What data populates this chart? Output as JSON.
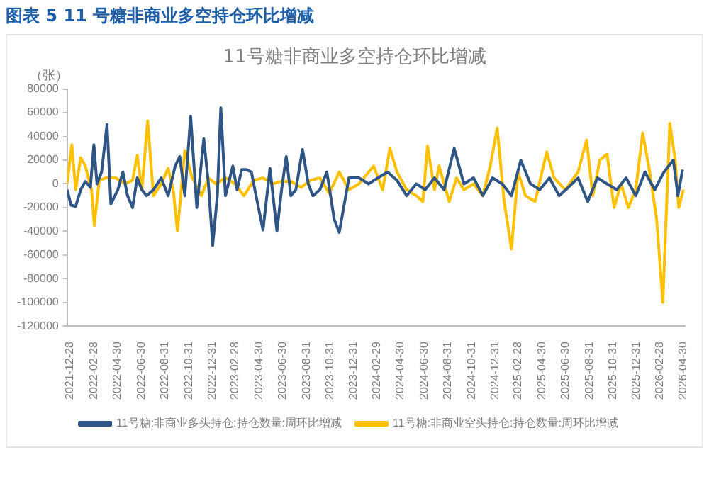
{
  "chart_data": {
    "type": "line",
    "title": "图表 5 11 号糖非商业多空持仓环比增减",
    "subtitle": "11号糖非商业多空持仓环比增减",
    "ylabel": "（张）",
    "xlim": [
      "2021-12-28",
      "2026-05-12"
    ],
    "xticks": [
      "2021-12-28",
      "2022-02-28",
      "2022-04-30",
      "2022-06-30",
      "2022-08-31",
      "2022-10-31",
      "2022-12-31",
      "2023-02-28",
      "2023-04-30",
      "2023-06-30",
      "2023-08-31",
      "2023-10-31",
      "2023-12-31",
      "2024-02-29",
      "2024-04-30",
      "2024-06-30",
      "2024-08-31",
      "2024-10-31",
      "2024-12-31",
      "2025-02-28",
      "2025-04-30",
      "2025-06-30",
      "2025-08-31",
      "2025-10-31",
      "2025-12-31",
      "2026-02-28",
      "2026-04-30"
    ],
    "ylim": [
      -120000,
      80000
    ],
    "yticks": [
      -120000,
      -100000,
      -80000,
      -60000,
      -40000,
      -20000,
      0,
      20000,
      40000,
      60000,
      80000
    ],
    "grid": false,
    "legend": "bottom",
    "marker": "none",
    "line_style": "solid",
    "series": [
      {
        "name": "11号糖:非商业多头持仓:持仓数量:周环比增减",
        "color": "#2e5585",
        "x": [
          "2021-12-28",
          "2022-01-07",
          "2022-01-19",
          "2022-02-01",
          "2022-02-13",
          "2022-02-26",
          "2022-03-07",
          "2022-03-15",
          "2022-03-27",
          "2022-04-10",
          "2022-04-20",
          "2022-05-08",
          "2022-05-21",
          "2022-06-02",
          "2022-06-15",
          "2022-06-27",
          "2022-07-09",
          "2022-07-21",
          "2022-08-08",
          "2022-08-28",
          "2022-09-15",
          "2022-10-03",
          "2022-10-15",
          "2022-10-28",
          "2022-11-12",
          "2022-11-28",
          "2022-12-16",
          "2022-12-28",
          "2023-01-08",
          "2023-01-20",
          "2023-01-29",
          "2023-02-10",
          "2023-03-01",
          "2023-03-12",
          "2023-03-24",
          "2023-04-05",
          "2023-04-18",
          "2023-04-30",
          "2023-05-18",
          "2023-06-05",
          "2023-06-23",
          "2023-07-05",
          "2023-07-17",
          "2023-07-29",
          "2023-08-11",
          "2023-08-28",
          "2023-09-12",
          "2023-09-24",
          "2023-10-12",
          "2023-10-30",
          "2023-11-18",
          "2023-12-01",
          "2023-12-26",
          "2024-01-21",
          "2024-02-15",
          "2024-03-10",
          "2024-04-04",
          "2024-04-28",
          "2024-05-23",
          "2024-06-17",
          "2024-07-10",
          "2024-08-03",
          "2024-08-28",
          "2024-09-23",
          "2024-10-18",
          "2024-11-12",
          "2024-12-06",
          "2024-12-31",
          "2025-01-25",
          "2025-02-18",
          "2025-03-14",
          "2025-04-08",
          "2025-05-02",
          "2025-05-27",
          "2025-06-21",
          "2025-07-15",
          "2025-08-09",
          "2025-09-03",
          "2025-09-28",
          "2025-10-23",
          "2025-11-17",
          "2025-12-11",
          "2026-01-05",
          "2026-01-29",
          "2026-02-23",
          "2026-03-19",
          "2026-04-12",
          "2026-04-24",
          "2026-05-06"
        ],
        "values": [
          -5000,
          -18000,
          -19000,
          -5000,
          2000,
          -3000,
          33000,
          0,
          10000,
          50000,
          -17000,
          -5000,
          10000,
          -10000,
          -20000,
          5000,
          -5000,
          -10000,
          -5000,
          5000,
          -10000,
          15000,
          23000,
          -10000,
          57000,
          -20000,
          38000,
          0,
          -52000,
          -10000,
          64000,
          -10000,
          15000,
          -5000,
          12000,
          12000,
          10000,
          -10000,
          -39000,
          13000,
          -40000,
          -5000,
          23000,
          -10000,
          -5000,
          29000,
          0,
          -10000,
          -5000,
          10000,
          -30000,
          -41000,
          5000,
          5000,
          0,
          5000,
          10000,
          3000,
          -10000,
          0,
          -5000,
          5000,
          -5000,
          30000,
          0,
          5000,
          -10000,
          5000,
          0,
          -10000,
          20000,
          0,
          -5000,
          5000,
          -10000,
          -3000,
          5000,
          -15000,
          5000,
          0,
          -5000,
          5000,
          -10000,
          10000,
          -5000,
          10000,
          20000,
          -10000,
          12000
        ]
      },
      {
        "name": "11号糖:非商业空头持仓:持仓数量:周环比增减",
        "color": "#ffc000",
        "x": [
          "2021-12-28",
          "2022-01-09",
          "2022-01-19",
          "2022-02-01",
          "2022-02-13",
          "2022-03-01",
          "2022-03-08",
          "2022-03-21",
          "2022-04-07",
          "2022-05-02",
          "2022-05-27",
          "2022-06-15",
          "2022-06-27",
          "2022-07-09",
          "2022-07-24",
          "2022-08-08",
          "2022-08-28",
          "2022-09-15",
          "2022-09-28",
          "2022-10-09",
          "2022-10-28",
          "2022-11-16",
          "2022-12-10",
          "2022-12-28",
          "2023-01-16",
          "2023-02-10",
          "2023-03-06",
          "2023-03-30",
          "2023-04-24",
          "2023-05-18",
          "2023-06-11",
          "2023-07-05",
          "2023-07-29",
          "2023-08-25",
          "2023-09-18",
          "2023-10-12",
          "2023-11-05",
          "2023-11-24",
          "2023-12-01",
          "2023-12-26",
          "2024-01-21",
          "2024-02-28",
          "2024-03-22",
          "2024-04-10",
          "2024-04-28",
          "2024-05-23",
          "2024-06-17",
          "2024-07-04",
          "2024-07-16",
          "2024-08-03",
          "2024-08-15",
          "2024-09-10",
          "2024-09-29",
          "2024-10-18",
          "2024-11-12",
          "2024-12-06",
          "2024-12-25",
          "2025-01-12",
          "2025-01-30",
          "2025-02-18",
          "2025-03-07",
          "2025-03-26",
          "2025-04-20",
          "2025-05-20",
          "2025-06-08",
          "2025-07-07",
          "2025-08-09",
          "2025-08-31",
          "2025-09-16",
          "2025-10-04",
          "2025-10-23",
          "2025-11-10",
          "2025-11-28",
          "2025-12-17",
          "2026-01-05",
          "2026-01-23",
          "2026-02-10",
          "2026-02-28",
          "2026-03-16",
          "2026-04-03",
          "2026-04-17",
          "2026-04-26",
          "2026-05-08"
        ],
        "values": [
          0,
          33000,
          -5000,
          22000,
          15000,
          -5000,
          -35000,
          3000,
          5000,
          5000,
          0,
          3000,
          24000,
          -5000,
          53000,
          -10000,
          0,
          13000,
          -5000,
          -40000,
          28000,
          5000,
          -10000,
          5000,
          0,
          5000,
          0,
          -10000,
          3000,
          5000,
          0,
          2000,
          2000,
          -3000,
          3000,
          5000,
          -8000,
          5000,
          10000,
          -5000,
          0,
          15000,
          -5000,
          30000,
          10000,
          -5000,
          -10000,
          -15000,
          32000,
          -5000,
          15000,
          -15000,
          5000,
          -5000,
          0,
          -10000,
          15000,
          47000,
          -15000,
          -55000,
          10000,
          -10000,
          -15000,
          27000,
          5000,
          -5000,
          10000,
          37000,
          -10000,
          20000,
          25000,
          -20000,
          0,
          -20000,
          -5000,
          43000,
          10000,
          -30000,
          -100000,
          51000,
          20000,
          -20000,
          -5000
        ]
      }
    ]
  }
}
